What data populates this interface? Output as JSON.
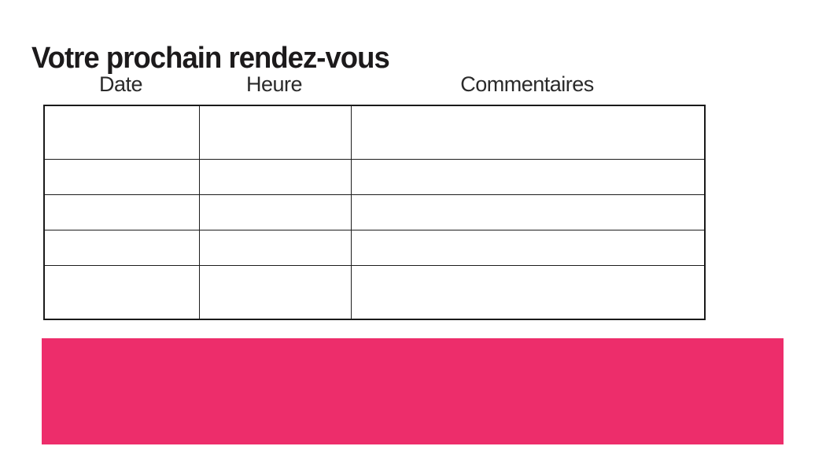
{
  "page": {
    "title": "Votre prochain rendez-vous"
  },
  "table": {
    "headers": [
      "Date",
      "Heure",
      "Commentaires"
    ],
    "rows": [
      [
        "",
        "",
        ""
      ],
      [
        "",
        "",
        ""
      ],
      [
        "",
        "",
        ""
      ],
      [
        "",
        "",
        ""
      ],
      [
        "",
        "",
        ""
      ]
    ]
  },
  "banner": {
    "text": "",
    "color": "#ED2D6B"
  },
  "colors": {
    "background": "#FFFFFF",
    "text": "#1F1F1F",
    "table_border": "#1D1D1D",
    "accent_pink": "#ED2D6B"
  }
}
